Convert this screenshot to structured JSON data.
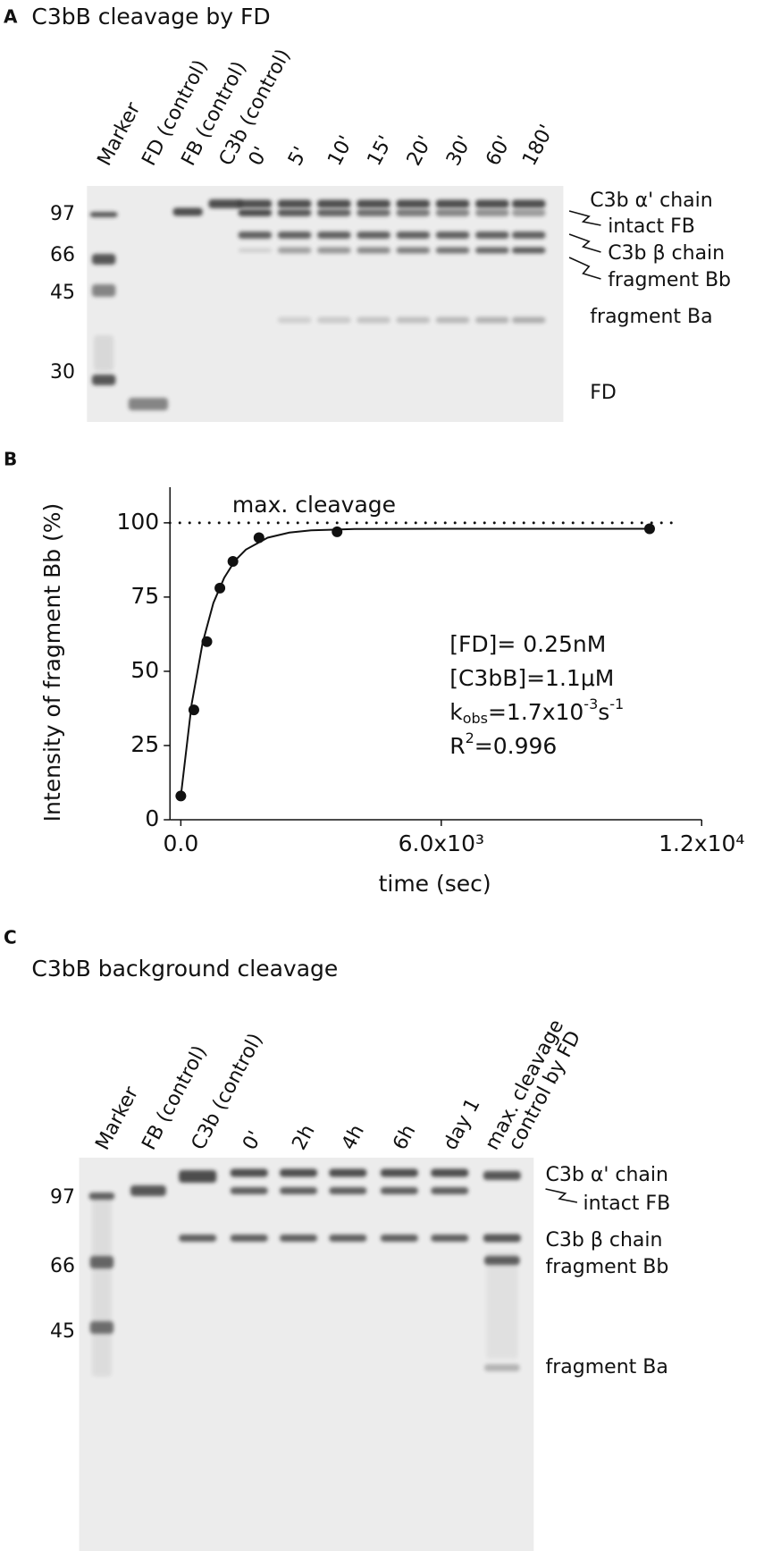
{
  "gel_a": {
    "panel": "A",
    "title": "C3bB cleavage by FD",
    "lanes": [
      "Marker",
      "FD (control)",
      "FB (control)",
      "C3b (control)",
      "0'",
      "5'",
      "10'",
      "15'",
      "20'",
      "30'",
      "60'",
      "180'"
    ],
    "markers": [
      "97",
      "66",
      "45",
      "30"
    ],
    "bands": [
      "C3b α' chain",
      "intact FB",
      "C3b β chain",
      "fragment Bb",
      "fragment Ba",
      "FD"
    ]
  },
  "chart_data": {
    "type": "scatter",
    "panel": "B",
    "y_label": "Intensity of fragment Bb (%)",
    "x_label": "time (sec)",
    "x": [
      0,
      300,
      600,
      900,
      1200,
      1800,
      3600,
      10800
    ],
    "values": [
      8,
      37,
      60,
      78,
      87,
      95,
      97,
      98
    ],
    "color": "#111111",
    "fit": {
      "x": [
        0,
        250,
        500,
        750,
        1000,
        1250,
        1500,
        2000,
        2500,
        3000,
        4000,
        6000,
        8000,
        10800
      ],
      "values": [
        8,
        39,
        59.5,
        73,
        81.5,
        87.3,
        91,
        95,
        96.7,
        97.5,
        97.9,
        98,
        98,
        98
      ]
    },
    "reference_line": {
      "value": 100,
      "label": "max. cleavage"
    },
    "annotations": [
      [
        {
          "t": "[FD]= 0.25nM"
        }
      ],
      [
        {
          "t": "[C3bB]=1.1μM"
        }
      ],
      [
        {
          "t": "k"
        },
        {
          "t": "obs",
          "sub": true
        },
        {
          "t": "=1.7x10"
        },
        {
          "t": "-3",
          "sup": true
        },
        {
          "t": "s"
        },
        {
          "t": "-1",
          "sup": true
        }
      ],
      [
        {
          "t": "R"
        },
        {
          "t": "2",
          "sup": true
        },
        {
          "t": "=0.996"
        }
      ]
    ],
    "xlim": [
      -250,
      12000
    ],
    "ylim": [
      0,
      112
    ],
    "xticks": [
      {
        "value": 0,
        "label": "0.0"
      },
      {
        "value": 6000,
        "label": "6.0x10³"
      },
      {
        "value": 12000,
        "label": "1.2x10⁴"
      }
    ],
    "yticks": [
      0,
      25,
      50,
      75,
      100
    ]
  },
  "gel_c": {
    "panel": "C",
    "title": "C3bB background cleavage",
    "lanes": [
      "Marker",
      "FB (control)",
      "C3b (control)",
      "0'",
      "2h",
      "4h",
      "6h",
      "day 1",
      [
        "max. cleavage",
        "control by FD"
      ]
    ],
    "markers": [
      "97",
      "66",
      "45"
    ],
    "bands": [
      "C3b α' chain",
      "intact FB",
      "C3b β chain",
      "fragment Bb",
      "fragment Ba"
    ]
  }
}
